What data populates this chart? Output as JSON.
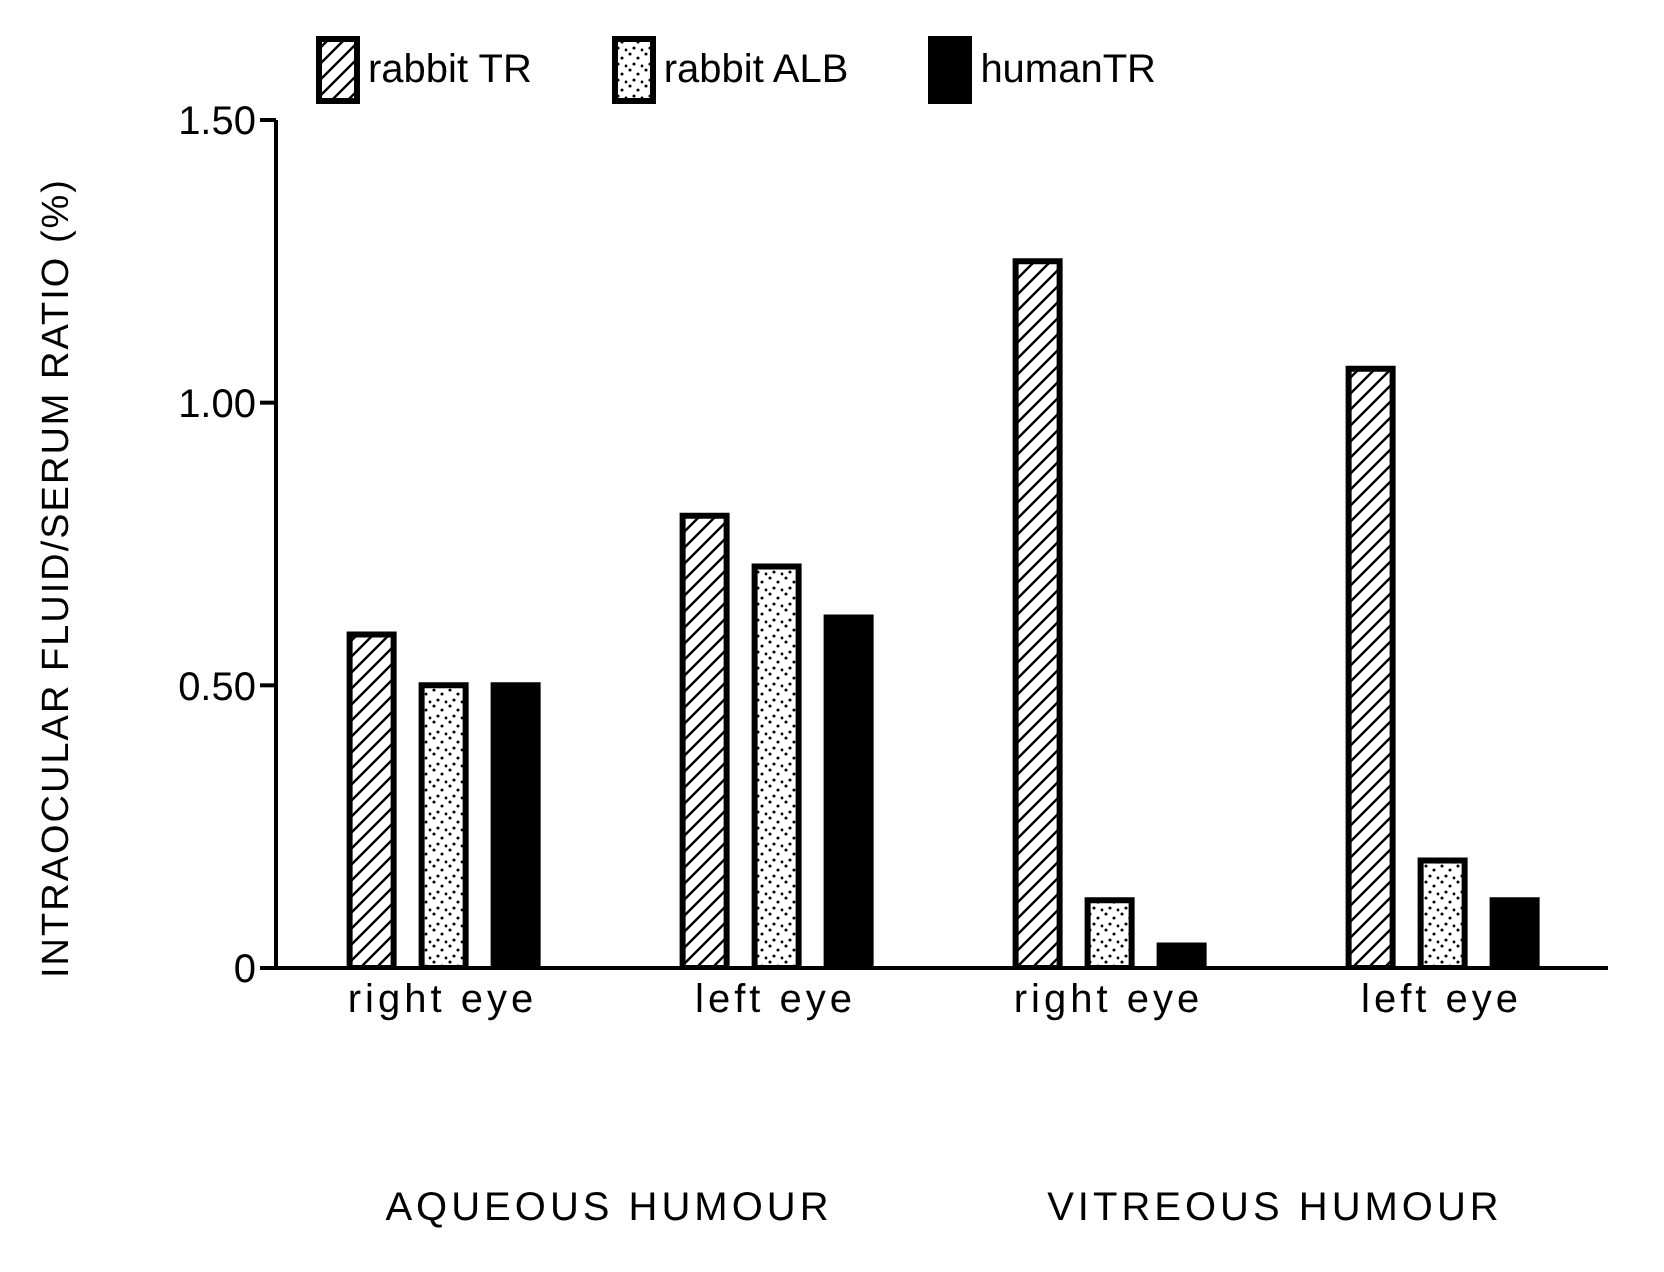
{
  "chart_data": {
    "type": "bar",
    "ylabel": "INTRAOCULAR FLUID/SERUM RATIO (%)",
    "categories": [
      "right eye",
      "left eye",
      "right eye",
      "left eye"
    ],
    "series": [
      {
        "name": "rabbit TR",
        "color": "#000000",
        "values": [
          0.59,
          0.8,
          1.25,
          1.06
        ]
      },
      {
        "name": "rabbit ALB",
        "color": "#000000",
        "values": [
          0.5,
          0.71,
          0.12,
          0.19
        ]
      },
      {
        "name": "humanTR",
        "color": "#000000",
        "values": [
          0.5,
          0.62,
          0.04,
          0.12
        ]
      }
    ],
    "ylim": [
      0,
      1.5
    ],
    "yticks": [
      0,
      {
        "value": 0.5,
        "label": "0.50"
      },
      {
        "value": 1,
        "label": "1.00"
      },
      {
        "value": 1.5,
        "label": "1.50"
      }
    ],
    "annotations": [
      "AQUEOUS HUMOUR",
      "VITREOUS HUMOUR"
    ],
    "grid": false,
    "legend": "top left"
  }
}
